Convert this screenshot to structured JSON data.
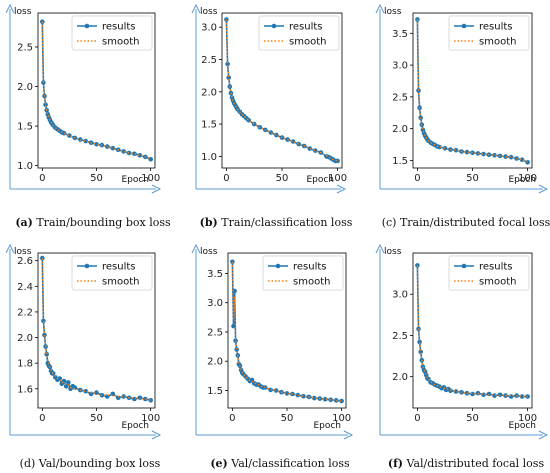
{
  "colors": {
    "results": "#1f77b4",
    "smooth": "#ff7f0e",
    "arrow": "#5b9bd5"
  },
  "chart_data": [
    {
      "type": "line",
      "caption": {
        "label": "(a)",
        "text": " Train/bounding box loss"
      },
      "ylabel": "loss",
      "xlabel": "Epoch",
      "xlim": [
        -4,
        104
      ],
      "ylim": [
        0.97,
        2.93
      ],
      "xticks": [
        0,
        50,
        100
      ],
      "yticks": [
        1.0,
        1.5,
        2.0,
        2.5
      ],
      "ytick_labels": [
        "1.0",
        "1.5",
        "2.0",
        "2.5"
      ],
      "legend": {
        "position": "top-right",
        "entries": [
          "results",
          "smooth"
        ]
      },
      "series": [
        {
          "name": "results",
          "x": [
            0,
            1,
            2,
            3,
            4,
            5,
            6,
            7,
            8,
            9,
            10,
            12,
            14,
            16,
            18,
            20,
            25,
            30,
            35,
            40,
            45,
            50,
            55,
            60,
            65,
            70,
            75,
            80,
            85,
            90,
            95,
            100
          ],
          "y": [
            2.82,
            2.05,
            1.88,
            1.77,
            1.7,
            1.65,
            1.61,
            1.58,
            1.55,
            1.53,
            1.51,
            1.48,
            1.46,
            1.44,
            1.42,
            1.41,
            1.38,
            1.35,
            1.33,
            1.31,
            1.29,
            1.27,
            1.26,
            1.24,
            1.22,
            1.2,
            1.18,
            1.16,
            1.15,
            1.13,
            1.11,
            1.08
          ]
        },
        {
          "name": "smooth",
          "x": [
            0,
            1,
            2,
            3,
            4,
            5,
            6,
            7,
            8,
            9,
            10,
            12,
            14,
            16,
            18,
            20,
            25,
            30,
            35,
            40,
            45,
            50,
            55,
            60,
            65,
            70,
            75,
            80,
            85,
            90,
            95,
            100
          ],
          "y": [
            2.82,
            2.05,
            1.88,
            1.77,
            1.7,
            1.65,
            1.61,
            1.58,
            1.55,
            1.53,
            1.51,
            1.48,
            1.46,
            1.44,
            1.42,
            1.41,
            1.38,
            1.35,
            1.33,
            1.31,
            1.29,
            1.27,
            1.26,
            1.24,
            1.22,
            1.2,
            1.18,
            1.16,
            1.15,
            1.13,
            1.11,
            1.09
          ]
        }
      ]
    },
    {
      "type": "line",
      "caption": {
        "label": "(b)",
        "text": " Train/classification loss"
      },
      "ylabel": "loss",
      "xlabel": "Epoch",
      "xlim": [
        -4,
        104
      ],
      "ylim": [
        0.82,
        3.22
      ],
      "xticks": [
        0,
        50,
        100
      ],
      "yticks": [
        1.0,
        1.5,
        2.0,
        2.5,
        3.0
      ],
      "ytick_labels": [
        "1.0",
        "1.5",
        "2.0",
        "2.5",
        "3.0"
      ],
      "legend": {
        "position": "top-right",
        "entries": [
          "results",
          "smooth"
        ]
      },
      "series": [
        {
          "name": "results",
          "x": [
            0,
            1,
            2,
            3,
            4,
            5,
            6,
            7,
            8,
            9,
            10,
            12,
            14,
            16,
            18,
            20,
            25,
            30,
            35,
            40,
            45,
            50,
            55,
            60,
            65,
            70,
            75,
            80,
            85,
            90,
            92,
            94,
            96,
            98,
            100
          ],
          "y": [
            3.12,
            2.43,
            2.22,
            2.08,
            1.98,
            1.91,
            1.86,
            1.82,
            1.79,
            1.76,
            1.73,
            1.69,
            1.65,
            1.62,
            1.59,
            1.56,
            1.5,
            1.45,
            1.41,
            1.37,
            1.33,
            1.29,
            1.26,
            1.23,
            1.19,
            1.16,
            1.12,
            1.09,
            1.06,
            1.0,
            0.99,
            0.97,
            0.95,
            0.93,
            0.93
          ]
        },
        {
          "name": "smooth",
          "x": [
            0,
            1,
            2,
            3,
            4,
            5,
            6,
            7,
            8,
            9,
            10,
            12,
            14,
            16,
            18,
            20,
            25,
            30,
            35,
            40,
            45,
            50,
            55,
            60,
            65,
            70,
            75,
            80,
            85,
            90,
            92,
            94,
            96,
            98,
            100
          ],
          "y": [
            3.12,
            2.43,
            2.22,
            2.08,
            1.98,
            1.91,
            1.86,
            1.82,
            1.79,
            1.76,
            1.73,
            1.69,
            1.65,
            1.62,
            1.59,
            1.56,
            1.5,
            1.45,
            1.41,
            1.37,
            1.33,
            1.29,
            1.26,
            1.23,
            1.19,
            1.16,
            1.12,
            1.09,
            1.06,
            1.01,
            0.99,
            0.97,
            0.95,
            0.94,
            0.93
          ]
        }
      ]
    },
    {
      "type": "line",
      "caption": {
        "label": "",
        "text": "(c) Train/distributed focal loss"
      },
      "ylabel": "loss",
      "xlabel": "Epoch",
      "xlim": [
        -4,
        104
      ],
      "ylim": [
        1.38,
        3.82
      ],
      "xticks": [
        0,
        50,
        100
      ],
      "yticks": [
        1.5,
        2.0,
        2.5,
        3.0,
        3.5
      ],
      "ytick_labels": [
        "1.5",
        "2.0",
        "2.5",
        "3.0",
        "3.5"
      ],
      "legend": {
        "position": "top-right",
        "entries": [
          "results",
          "smooth"
        ]
      },
      "series": [
        {
          "name": "results",
          "x": [
            0,
            1,
            2,
            3,
            4,
            5,
            6,
            7,
            8,
            9,
            10,
            12,
            14,
            16,
            18,
            20,
            25,
            30,
            35,
            40,
            45,
            50,
            55,
            60,
            65,
            70,
            75,
            80,
            85,
            90,
            95,
            100
          ],
          "y": [
            3.72,
            2.6,
            2.33,
            2.17,
            2.06,
            1.98,
            1.93,
            1.89,
            1.86,
            1.83,
            1.81,
            1.78,
            1.76,
            1.74,
            1.72,
            1.71,
            1.69,
            1.67,
            1.66,
            1.64,
            1.63,
            1.62,
            1.61,
            1.6,
            1.59,
            1.58,
            1.57,
            1.56,
            1.55,
            1.53,
            1.51,
            1.47
          ]
        },
        {
          "name": "smooth",
          "x": [
            0,
            1,
            2,
            3,
            4,
            5,
            6,
            7,
            8,
            9,
            10,
            12,
            14,
            16,
            18,
            20,
            25,
            30,
            35,
            40,
            45,
            50,
            55,
            60,
            65,
            70,
            75,
            80,
            85,
            90,
            95,
            100
          ],
          "y": [
            3.72,
            2.6,
            2.33,
            2.17,
            2.06,
            1.98,
            1.93,
            1.89,
            1.86,
            1.83,
            1.81,
            1.78,
            1.76,
            1.74,
            1.72,
            1.71,
            1.69,
            1.67,
            1.66,
            1.64,
            1.63,
            1.62,
            1.61,
            1.6,
            1.59,
            1.58,
            1.57,
            1.56,
            1.55,
            1.53,
            1.51,
            1.48
          ]
        }
      ]
    },
    {
      "type": "line",
      "caption": {
        "label": "",
        "text": "(d) Val/bounding box loss"
      },
      "ylabel": "loss",
      "xlabel": "Epoch",
      "xlim": [
        -4,
        104
      ],
      "ylim": [
        1.45,
        2.66
      ],
      "xticks": [
        0,
        50,
        100
      ],
      "yticks": [
        1.6,
        1.8,
        2.0,
        2.2,
        2.4,
        2.6
      ],
      "ytick_labels": [
        "1.6",
        "1.8",
        "2.0",
        "2.2",
        "2.4",
        "2.6"
      ],
      "legend": {
        "position": "top-right",
        "entries": [
          "results",
          "smooth"
        ]
      },
      "series": [
        {
          "name": "results",
          "x": [
            0,
            1,
            2,
            3,
            4,
            5,
            6,
            7,
            8,
            9,
            10,
            12,
            14,
            16,
            18,
            20,
            22,
            24,
            26,
            28,
            30,
            35,
            40,
            45,
            50,
            55,
            60,
            65,
            70,
            75,
            80,
            85,
            90,
            95,
            100
          ],
          "y": [
            2.62,
            2.13,
            2.02,
            1.93,
            1.87,
            1.8,
            1.78,
            1.77,
            1.74,
            1.72,
            1.72,
            1.69,
            1.67,
            1.68,
            1.64,
            1.66,
            1.62,
            1.65,
            1.6,
            1.62,
            1.61,
            1.59,
            1.58,
            1.56,
            1.57,
            1.55,
            1.54,
            1.56,
            1.53,
            1.54,
            1.53,
            1.52,
            1.53,
            1.52,
            1.51
          ]
        },
        {
          "name": "smooth",
          "x": [
            0,
            1,
            2,
            3,
            4,
            5,
            6,
            7,
            8,
            9,
            10,
            12,
            14,
            16,
            18,
            20,
            22,
            24,
            26,
            28,
            30,
            35,
            40,
            45,
            50,
            55,
            60,
            65,
            70,
            75,
            80,
            85,
            90,
            95,
            100
          ],
          "y": [
            2.62,
            2.15,
            2.03,
            1.94,
            1.88,
            1.82,
            1.79,
            1.77,
            1.75,
            1.73,
            1.72,
            1.7,
            1.68,
            1.67,
            1.65,
            1.65,
            1.63,
            1.63,
            1.61,
            1.61,
            1.6,
            1.59,
            1.58,
            1.57,
            1.56,
            1.55,
            1.55,
            1.55,
            1.54,
            1.54,
            1.53,
            1.53,
            1.52,
            1.52,
            1.51
          ]
        }
      ]
    },
    {
      "type": "line",
      "caption": {
        "label": "(e)",
        "text": " Val/classification loss"
      },
      "ylabel": "loss",
      "xlabel": "Epoch",
      "xlim": [
        -4,
        104
      ],
      "ylim": [
        1.2,
        3.85
      ],
      "xticks": [
        0,
        50,
        100
      ],
      "yticks": [
        1.5,
        2.0,
        2.5,
        3.0,
        3.5
      ],
      "ytick_labels": [
        "1.5",
        "2.0",
        "2.5",
        "3.0",
        "3.5"
      ],
      "legend": {
        "position": "top-right",
        "entries": [
          "results",
          "smooth"
        ]
      },
      "series": [
        {
          "name": "results",
          "x": [
            0,
            1,
            2,
            3,
            4,
            5,
            6,
            7,
            8,
            9,
            10,
            12,
            14,
            16,
            18,
            20,
            22,
            24,
            26,
            28,
            30,
            35,
            40,
            45,
            50,
            55,
            60,
            65,
            70,
            75,
            80,
            85,
            90,
            95,
            100
          ],
          "y": [
            3.7,
            2.6,
            3.2,
            2.35,
            2.2,
            2.1,
            1.95,
            1.92,
            1.85,
            1.8,
            1.78,
            1.74,
            1.7,
            1.66,
            1.68,
            1.62,
            1.6,
            1.6,
            1.57,
            1.55,
            1.55,
            1.51,
            1.5,
            1.47,
            1.45,
            1.44,
            1.42,
            1.4,
            1.39,
            1.37,
            1.36,
            1.35,
            1.34,
            1.33,
            1.32
          ]
        },
        {
          "name": "smooth",
          "x": [
            0,
            1,
            2,
            3,
            4,
            5,
            6,
            7,
            8,
            9,
            10,
            12,
            14,
            16,
            18,
            20,
            22,
            24,
            26,
            28,
            30,
            35,
            40,
            45,
            50,
            55,
            60,
            65,
            70,
            75,
            80,
            85,
            90,
            95,
            100
          ],
          "y": [
            3.7,
            2.7,
            3.1,
            2.4,
            2.22,
            2.1,
            1.97,
            1.92,
            1.86,
            1.81,
            1.78,
            1.74,
            1.7,
            1.67,
            1.66,
            1.63,
            1.61,
            1.6,
            1.57,
            1.56,
            1.55,
            1.52,
            1.5,
            1.47,
            1.45,
            1.44,
            1.42,
            1.4,
            1.39,
            1.37,
            1.36,
            1.35,
            1.34,
            1.33,
            1.32
          ]
        }
      ]
    },
    {
      "type": "line",
      "caption": {
        "label": "(f)",
        "text": " Val/distributed focal loss"
      },
      "ylabel": "loss",
      "xlabel": "Epoch",
      "xlim": [
        -4,
        104
      ],
      "ylim": [
        1.62,
        3.5
      ],
      "xticks": [
        0,
        50,
        100
      ],
      "yticks": [
        2.0,
        2.5,
        3.0
      ],
      "ytick_labels": [
        "2.0",
        "2.5",
        "3.0"
      ],
      "legend": {
        "position": "top-right",
        "entries": [
          "results",
          "smooth"
        ]
      },
      "series": [
        {
          "name": "results",
          "x": [
            0,
            1,
            2,
            3,
            4,
            5,
            6,
            7,
            8,
            9,
            10,
            12,
            14,
            16,
            18,
            20,
            22,
            24,
            26,
            28,
            30,
            35,
            40,
            45,
            50,
            55,
            60,
            65,
            70,
            75,
            80,
            85,
            90,
            95,
            100
          ],
          "y": [
            3.35,
            2.58,
            2.42,
            2.3,
            2.2,
            2.12,
            2.08,
            2.06,
            2.02,
            1.98,
            1.97,
            1.93,
            1.92,
            1.9,
            1.89,
            1.88,
            1.86,
            1.87,
            1.84,
            1.85,
            1.83,
            1.82,
            1.81,
            1.8,
            1.79,
            1.8,
            1.78,
            1.79,
            1.77,
            1.78,
            1.77,
            1.76,
            1.77,
            1.76,
            1.76
          ]
        },
        {
          "name": "smooth",
          "x": [
            0,
            1,
            2,
            3,
            4,
            5,
            6,
            7,
            8,
            9,
            10,
            12,
            14,
            16,
            18,
            20,
            22,
            24,
            26,
            28,
            30,
            35,
            40,
            45,
            50,
            55,
            60,
            65,
            70,
            75,
            80,
            85,
            90,
            95,
            100
          ],
          "y": [
            3.35,
            2.62,
            2.44,
            2.31,
            2.21,
            2.13,
            2.09,
            2.06,
            2.02,
            1.99,
            1.97,
            1.94,
            1.92,
            1.9,
            1.89,
            1.88,
            1.87,
            1.86,
            1.85,
            1.85,
            1.84,
            1.82,
            1.81,
            1.8,
            1.8,
            1.79,
            1.79,
            1.78,
            1.78,
            1.77,
            1.77,
            1.77,
            1.77,
            1.76,
            1.76
          ]
        }
      ]
    }
  ]
}
